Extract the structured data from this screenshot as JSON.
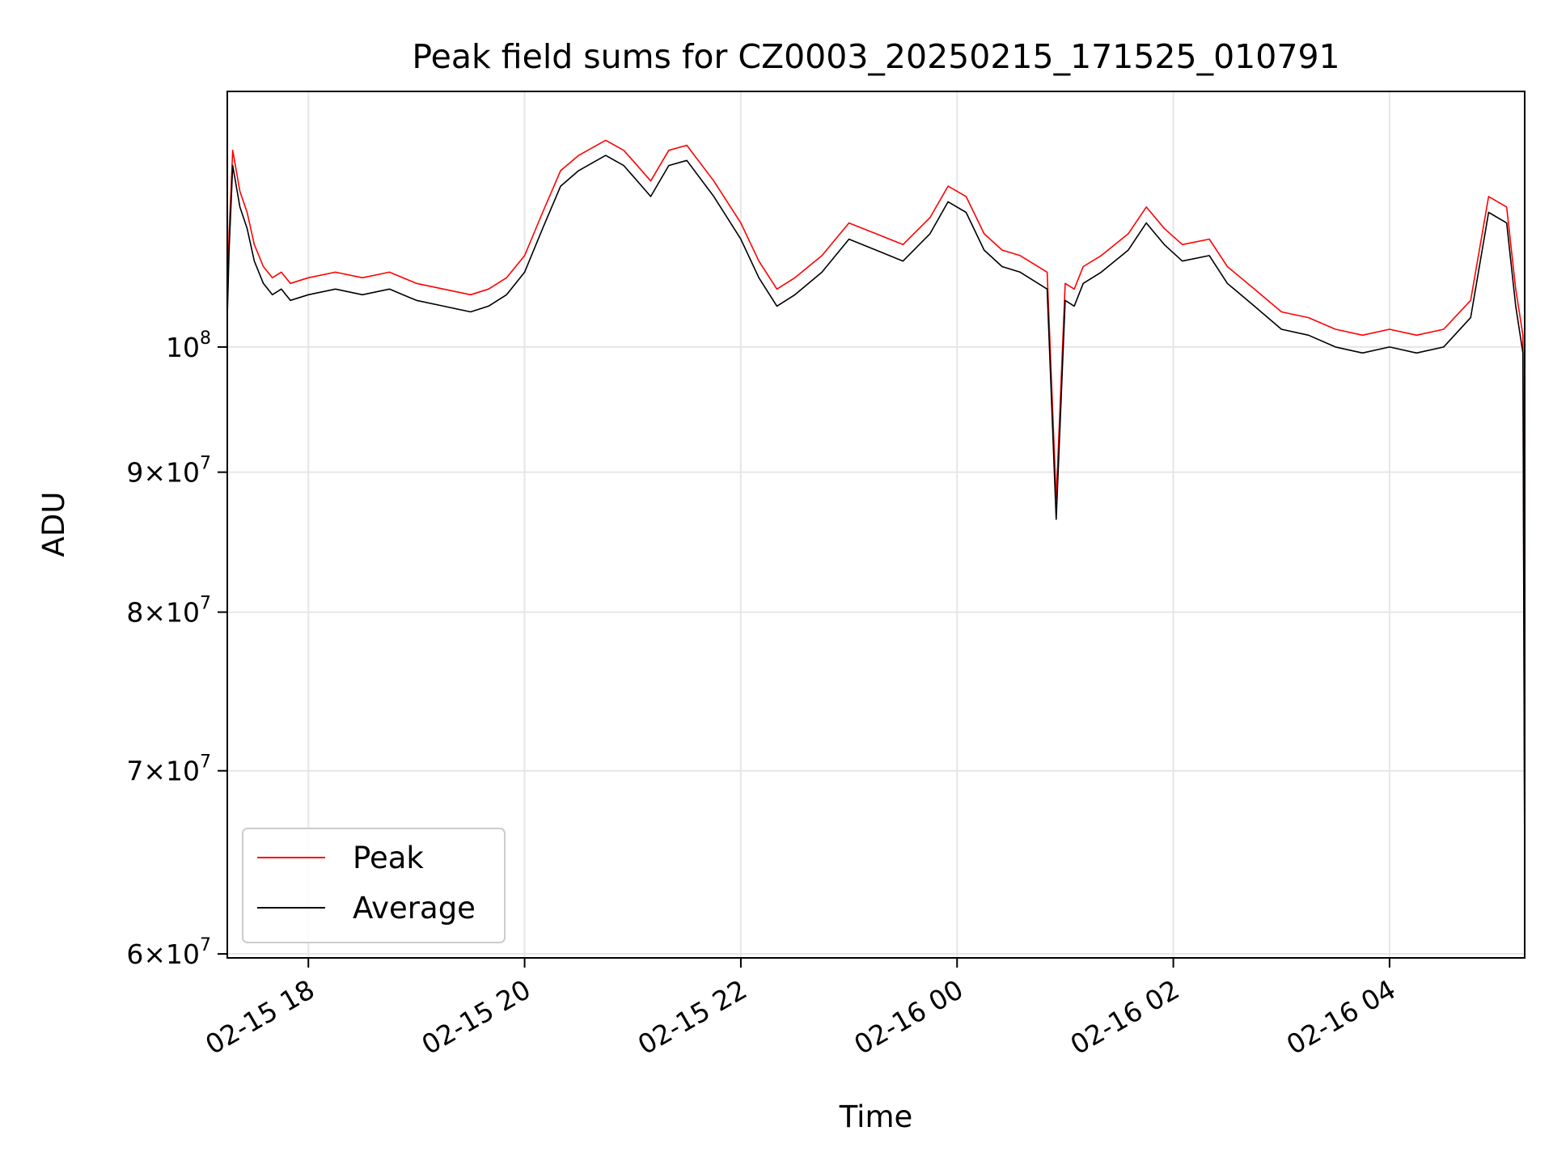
{
  "chart_data": {
    "type": "line",
    "title": "Peak field sums for CZ0003_20250215_171525_010791",
    "xlabel": "Time",
    "ylabel": "ADU",
    "yscale": "log",
    "ylim": [
      59800000,
      124000000
    ],
    "xlim": [
      "2025-02-15 17:15",
      "2025-02-16 05:15"
    ],
    "grid": true,
    "legend_position": "lower-left",
    "x_ticks": [
      {
        "time": "2025-02-15 18:00",
        "label": "02-15 18"
      },
      {
        "time": "2025-02-15 20:00",
        "label": "02-15 20"
      },
      {
        "time": "2025-02-15 22:00",
        "label": "02-15 22"
      },
      {
        "time": "2025-02-16 00:00",
        "label": "02-16 00"
      },
      {
        "time": "2025-02-16 02:00",
        "label": "02-16 02"
      },
      {
        "time": "2025-02-16 04:00",
        "label": "02-16 04"
      }
    ],
    "y_ticks": [
      {
        "value": 60000000,
        "mantissa": "6",
        "base": "10",
        "exp": "7"
      },
      {
        "value": 70000000,
        "mantissa": "7",
        "base": "10",
        "exp": "7"
      },
      {
        "value": 80000000,
        "mantissa": "8",
        "base": "10",
        "exp": "7"
      },
      {
        "value": 90000000,
        "mantissa": "9",
        "base": "10",
        "exp": "7"
      },
      {
        "value": 100000000,
        "mantissa": "",
        "base": "10",
        "exp": "8"
      }
    ],
    "x": [
      "2025-02-15 17:15",
      "2025-02-15 17:16",
      "2025-02-15 17:18",
      "2025-02-15 17:22",
      "2025-02-15 17:26",
      "2025-02-15 17:30",
      "2025-02-15 17:35",
      "2025-02-15 17:40",
      "2025-02-15 17:45",
      "2025-02-15 17:50",
      "2025-02-15 18:00",
      "2025-02-15 18:15",
      "2025-02-15 18:30",
      "2025-02-15 18:45",
      "2025-02-15 19:00",
      "2025-02-15 19:15",
      "2025-02-15 19:30",
      "2025-02-15 19:40",
      "2025-02-15 19:50",
      "2025-02-15 20:00",
      "2025-02-15 20:10",
      "2025-02-15 20:20",
      "2025-02-15 20:30",
      "2025-02-15 20:45",
      "2025-02-15 20:55",
      "2025-02-15 21:00",
      "2025-02-15 21:10",
      "2025-02-15 21:20",
      "2025-02-15 21:30",
      "2025-02-15 21:45",
      "2025-02-15 22:00",
      "2025-02-15 22:10",
      "2025-02-15 22:20",
      "2025-02-15 22:30",
      "2025-02-15 22:45",
      "2025-02-15 23:00",
      "2025-02-15 23:15",
      "2025-02-15 23:30",
      "2025-02-15 23:45",
      "2025-02-15 23:55",
      "2025-02-16 00:05",
      "2025-02-16 00:15",
      "2025-02-16 00:25",
      "2025-02-16 00:35",
      "2025-02-16 00:50",
      "2025-02-16 00:55",
      "2025-02-16 01:00",
      "2025-02-16 01:05",
      "2025-02-16 01:10",
      "2025-02-16 01:20",
      "2025-02-16 01:35",
      "2025-02-16 01:45",
      "2025-02-16 01:55",
      "2025-02-16 02:05",
      "2025-02-16 02:20",
      "2025-02-16 02:30",
      "2025-02-16 02:45",
      "2025-02-16 03:00",
      "2025-02-16 03:15",
      "2025-02-16 03:30",
      "2025-02-16 03:45",
      "2025-02-16 04:00",
      "2025-02-16 04:15",
      "2025-02-16 04:30",
      "2025-02-16 04:45",
      "2025-02-16 04:55",
      "2025-02-16 05:05",
      "2025-02-16 05:10",
      "2025-02-16 05:14",
      "2025-02-16 05:15"
    ],
    "series": [
      {
        "name": "Peak",
        "color": "#ff0000",
        "values": [
          104000000,
          110000000,
          118000000,
          114000000,
          112000000,
          109000000,
          107000000,
          106000000,
          106500000,
          105500000,
          106000000,
          106500000,
          106000000,
          106500000,
          105500000,
          105000000,
          104500000,
          105000000,
          106000000,
          108000000,
          112000000,
          116000000,
          117500000,
          119000000,
          118000000,
          117000000,
          115000000,
          118000000,
          118500000,
          115000000,
          111000000,
          107500000,
          105000000,
          106000000,
          108000000,
          111000000,
          110000000,
          109000000,
          111500000,
          114500000,
          113500000,
          110000000,
          108500000,
          108000000,
          106500000,
          88000000,
          105500000,
          105000000,
          107000000,
          108000000,
          110000000,
          112500000,
          110500000,
          109000000,
          109500000,
          107000000,
          105000000,
          103000000,
          102500000,
          101500000,
          101000000,
          101500000,
          101000000,
          101500000,
          104000000,
          113500000,
          112500000,
          105000000,
          101000000,
          65000000
        ]
      },
      {
        "name": "Average",
        "color": "#000000",
        "values": [
          102500000,
          108500000,
          116500000,
          112500000,
          110500000,
          107500000,
          105500000,
          104500000,
          105000000,
          104000000,
          104500000,
          105000000,
          104500000,
          105000000,
          104000000,
          103500000,
          103000000,
          103500000,
          104500000,
          106500000,
          110500000,
          114500000,
          116000000,
          117500000,
          116500000,
          115500000,
          113500000,
          116500000,
          117000000,
          113500000,
          109500000,
          106000000,
          103500000,
          104500000,
          106500000,
          109500000,
          108500000,
          107500000,
          110000000,
          113000000,
          112000000,
          108500000,
          107000000,
          106500000,
          105000000,
          86500000,
          104000000,
          103500000,
          105500000,
          106500000,
          108500000,
          111000000,
          109000000,
          107500000,
          108000000,
          105500000,
          103500000,
          101500000,
          101000000,
          100000000,
          99500000,
          100000000,
          99500000,
          100000000,
          102500000,
          112000000,
          111000000,
          103500000,
          99500000,
          64000000
        ]
      }
    ]
  }
}
